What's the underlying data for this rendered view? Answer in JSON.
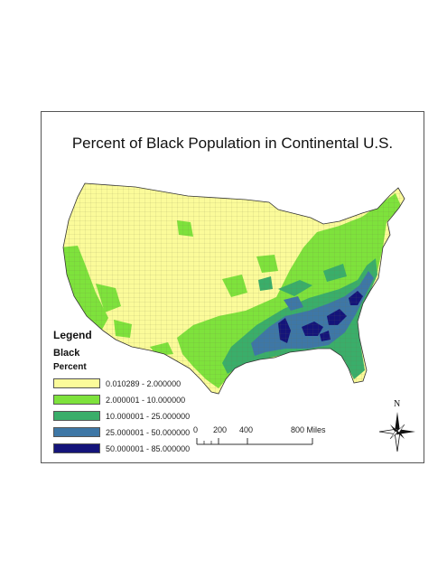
{
  "title": "Percent of Black Population in Continental U.S.",
  "legend": {
    "heading": "Legend",
    "layer": "Black",
    "field": "Percent",
    "classes": [
      {
        "label": "0.010289 - 2.000000",
        "color": "#fbfb9a"
      },
      {
        "label": "2.000001 - 10.000000",
        "color": "#7ee23c"
      },
      {
        "label": "10.000001 - 25.000000",
        "color": "#3aae6a"
      },
      {
        "label": "25.000001 - 50.000000",
        "color": "#3e77a6"
      },
      {
        "label": "50.000001 - 85.000000",
        "color": "#14147a"
      }
    ]
  },
  "scale_bar": {
    "ticks": [
      "0",
      "200",
      "400",
      "800 Miles"
    ]
  },
  "north_arrow": {
    "label": "N",
    "icon": "compass-rose-icon"
  }
}
